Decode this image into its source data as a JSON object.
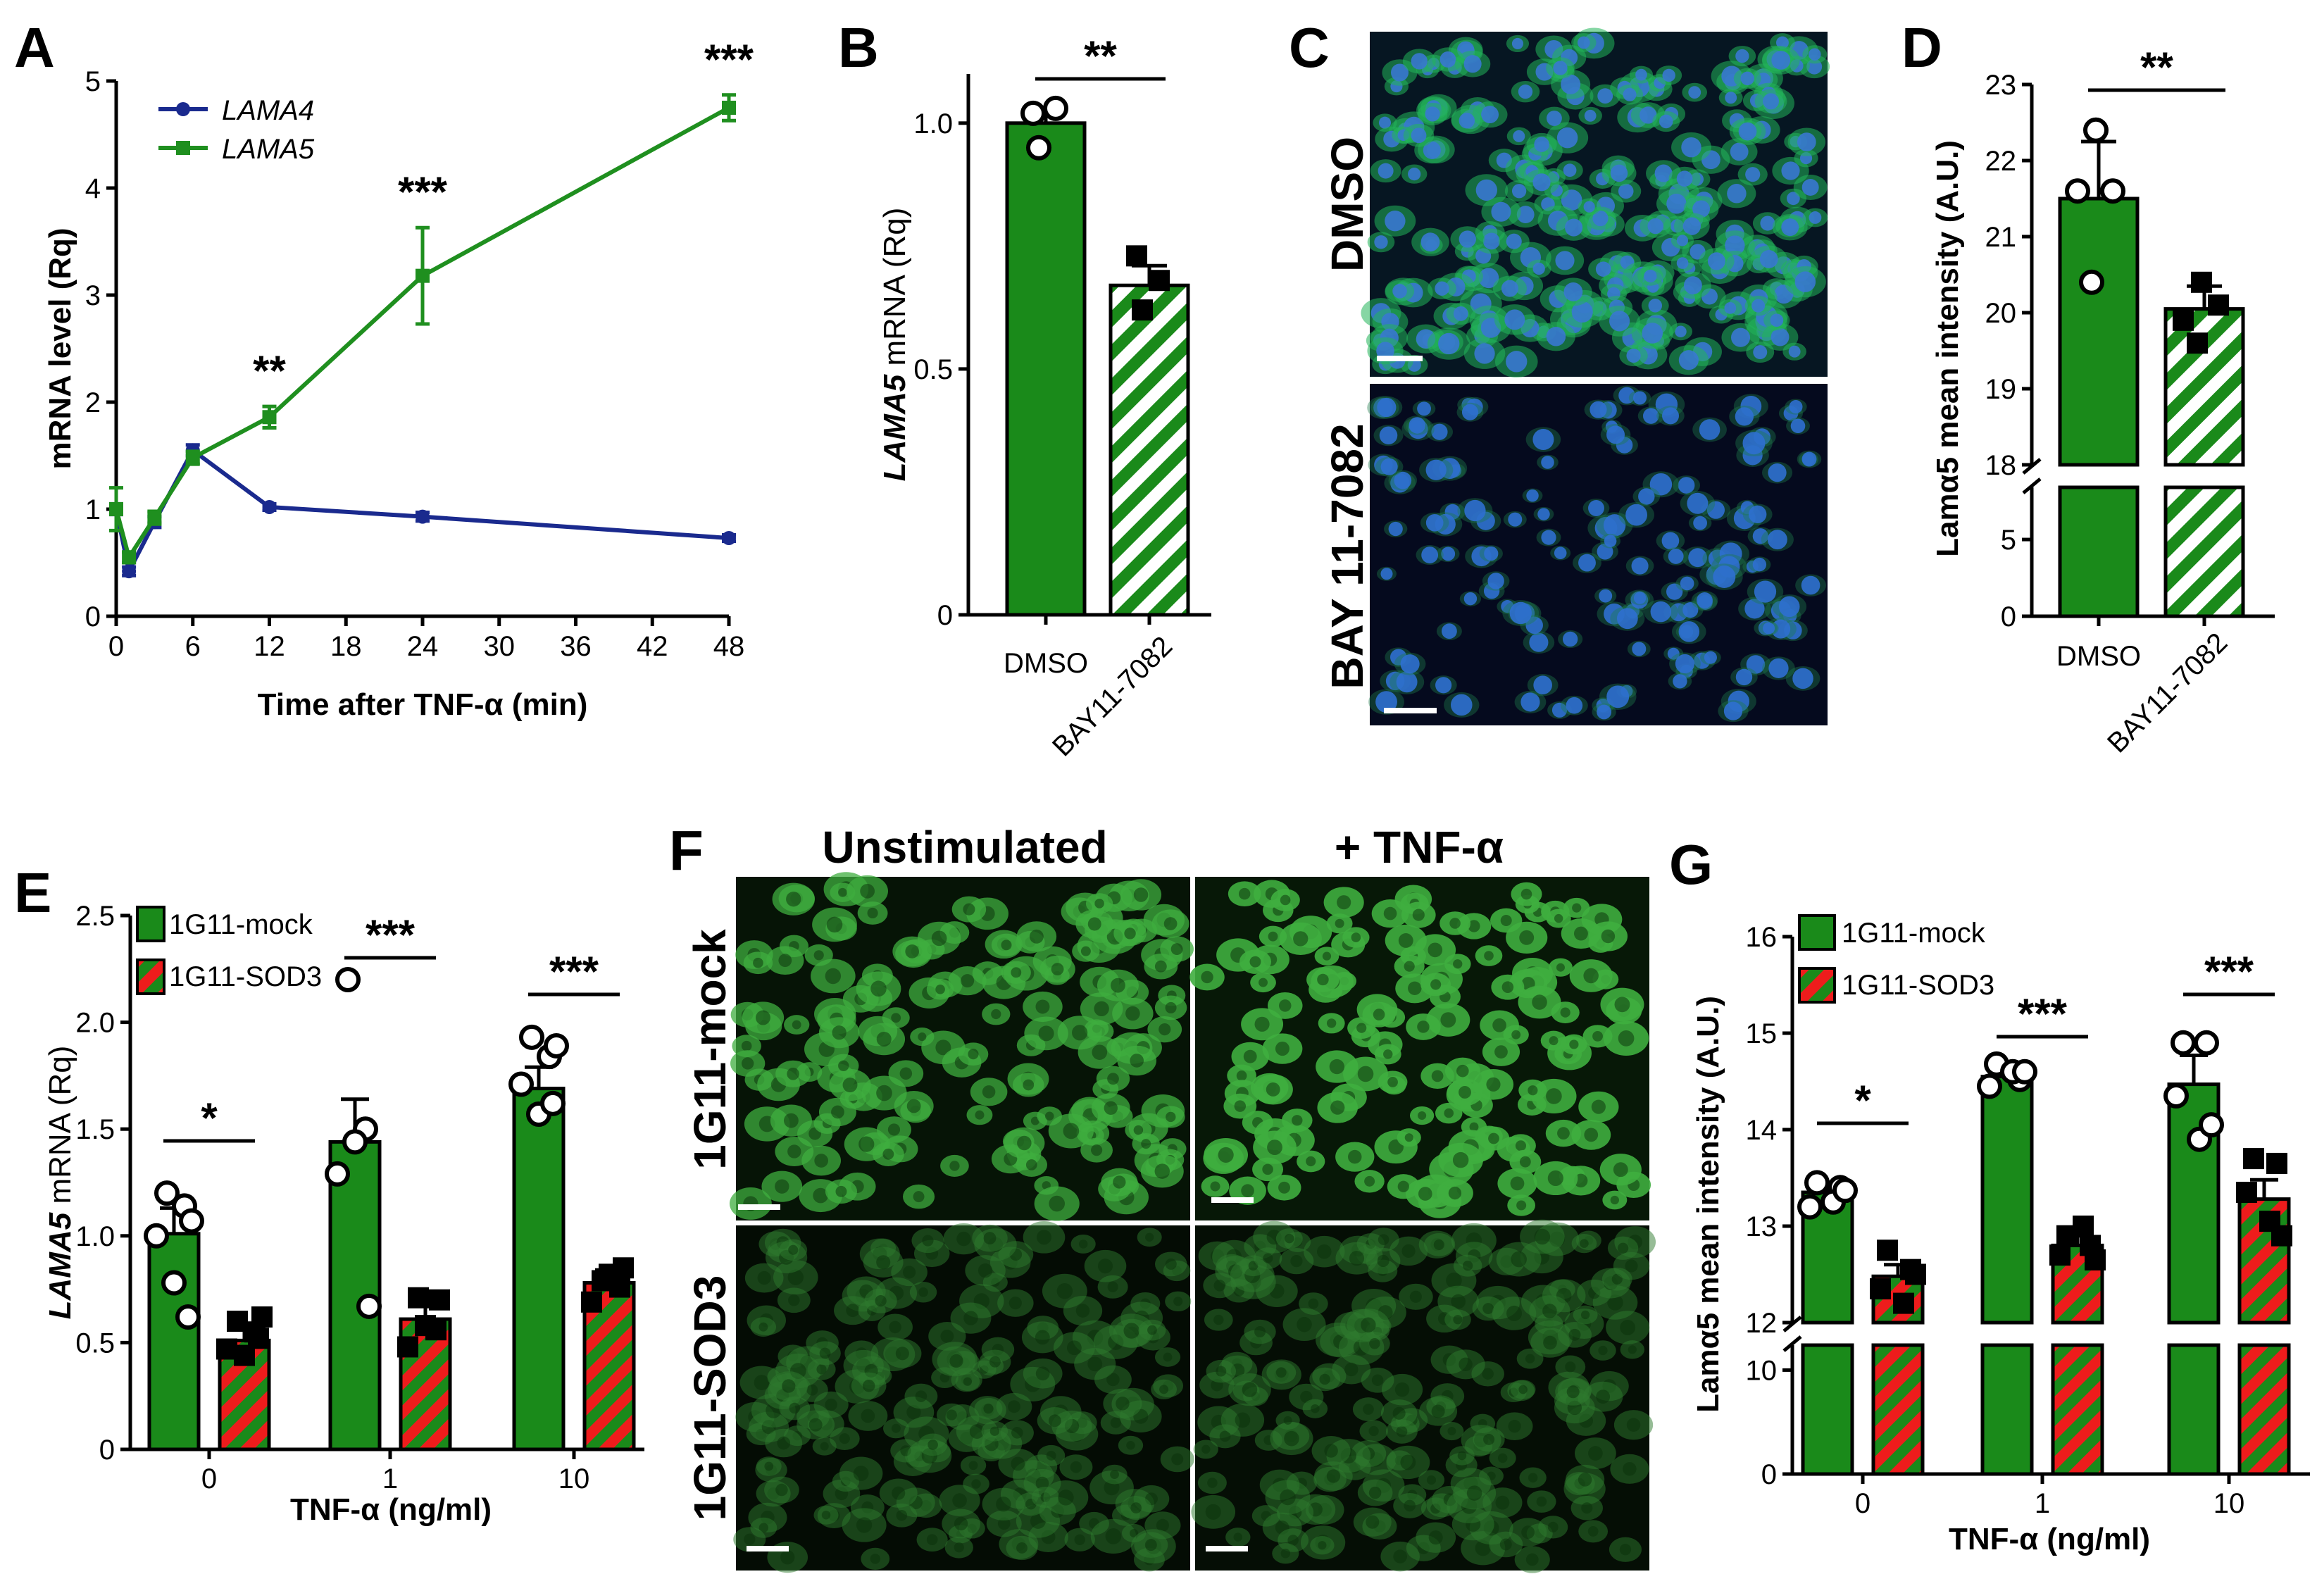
{
  "colors": {
    "green": "#1a8a1a",
    "lama4": "#1a2a8e",
    "lama5": "#1f8f1f",
    "red": "#ee1c1c",
    "white": "#ffffff"
  },
  "panel_labels": {
    "A": "A",
    "B": "B",
    "C": "C",
    "D": "D",
    "E": "E",
    "F": "F",
    "G": "G"
  },
  "chart_data": [
    {
      "id": "A",
      "type": "line",
      "xlabel": "Time after TNF-α (min)",
      "ylabel": "mRNA level (Rq)",
      "xticks": [
        "0",
        "6",
        "12",
        "18",
        "24",
        "30",
        "36",
        "42",
        "48"
      ],
      "yticks": [
        "0",
        "1",
        "2",
        "3",
        "4",
        "5"
      ],
      "xlim": [
        0,
        48
      ],
      "ylim": [
        0,
        5
      ],
      "series": [
        {
          "name": "LAMA4",
          "x": [
            0,
            1,
            3,
            6,
            12,
            24,
            48
          ],
          "values": [
            1.0,
            0.42,
            0.88,
            1.55,
            1.02,
            0.93,
            0.73
          ],
          "err": [
            0.05,
            0.04,
            0.05,
            0.05,
            0.03,
            0.04,
            0.03
          ]
        },
        {
          "name": "LAMA5",
          "x": [
            0,
            1,
            3,
            6,
            12,
            24,
            48
          ],
          "values": [
            1.0,
            0.55,
            0.92,
            1.48,
            1.86,
            3.18,
            4.75
          ],
          "err": [
            0.2,
            0.05,
            0.06,
            0.06,
            0.1,
            0.45,
            0.12
          ]
        }
      ],
      "stars": [
        {
          "x": 12,
          "label": "**"
        },
        {
          "x": 24,
          "label": "***"
        },
        {
          "x": 48,
          "label": "***"
        }
      ]
    },
    {
      "id": "B",
      "type": "bar",
      "ylabel_italic": "LAMA5",
      "ylabel_rest": " mRNA (Rq)",
      "categories": [
        "DMSO",
        "BAY11-7082"
      ],
      "values": [
        1.0,
        0.67
      ],
      "err": [
        0.03,
        0.04
      ],
      "points": [
        [
          1.02,
          0.95,
          1.03
        ],
        [
          0.73,
          0.62,
          0.68
        ]
      ],
      "yticks": [
        "0",
        "0.5",
        "1.0"
      ],
      "ylim": [
        0,
        1.1
      ],
      "star": "**"
    },
    {
      "id": "D",
      "type": "bar",
      "ylabel": "Lamα5 mean intensity (A.U.)",
      "categories": [
        "DMSO",
        "BAY11-7082"
      ],
      "values": [
        21.5,
        20.05
      ],
      "err": [
        0.75,
        0.3
      ],
      "points": [
        [
          22.4,
          21.6,
          21.6,
          20.4
        ],
        [
          20.4,
          19.9,
          20.1,
          19.6
        ]
      ],
      "yticks_upper": [
        "18",
        "19",
        "20",
        "21",
        "22",
        "23"
      ],
      "yticks_lower": [
        "0",
        "5"
      ],
      "star": "**"
    },
    {
      "id": "E",
      "type": "bar",
      "ylabel_italic": "LAMA5",
      "ylabel_rest": " mRNA (Rq)",
      "xlabel": "TNF-α (ng/ml)",
      "categories": [
        "0",
        "1",
        "10"
      ],
      "series": [
        {
          "name": "1G11-mock",
          "values": [
            1.01,
            1.44,
            1.69
          ],
          "err": [
            0.12,
            0.2,
            0.1
          ]
        },
        {
          "name": "1G11-SOD3",
          "values": [
            0.51,
            0.61,
            0.78
          ],
          "err": [
            0.05,
            0.08,
            0.06
          ]
        }
      ],
      "points": [
        [
          [
            1.2,
            1.14,
            1.0,
            0.78,
            0.62,
            1.07
          ],
          [
            0.6,
            0.55,
            0.47,
            0.44,
            0.52,
            0.62
          ]
        ],
        [
          [
            2.2,
            1.5,
            1.29,
            1.44,
            0.67
          ],
          [
            0.71,
            0.56,
            0.48,
            0.58,
            0.7
          ]
        ],
        [
          [
            1.93,
            1.84,
            1.71,
            1.57,
            1.62,
            1.89
          ],
          [
            0.79,
            0.76,
            0.69,
            0.82,
            0.85
          ]
        ]
      ],
      "yticks": [
        "0",
        "0.5",
        "1.0",
        "1.5",
        "2.0",
        "2.5"
      ],
      "ylim": [
        0,
        2.5
      ],
      "stars": [
        "*",
        "***",
        "***"
      ]
    },
    {
      "id": "G",
      "type": "bar",
      "ylabel": "Lamα5 mean intensity (A.U.)",
      "xlabel": "TNF-α (ng/ml)",
      "categories": [
        "0",
        "1",
        "10"
      ],
      "series": [
        {
          "name": "1G11-mock",
          "values": [
            13.35,
            14.55,
            14.47
          ],
          "err": [
            0.08,
            0.06,
            0.3
          ]
        },
        {
          "name": "1G11-SOD3",
          "values": [
            12.48,
            12.8,
            13.28
          ],
          "err": [
            0.12,
            0.1,
            0.2
          ]
        }
      ],
      "points": [
        [
          [
            13.45,
            13.4,
            13.2,
            13.25,
            13.37
          ],
          [
            12.75,
            12.55,
            12.35,
            12.2,
            12.5
          ]
        ],
        [
          [
            14.68,
            14.52,
            14.45,
            14.6,
            14.6
          ],
          [
            12.9,
            12.8,
            12.7,
            13.0,
            12.65
          ]
        ],
        [
          [
            14.9,
            14.9,
            14.35,
            13.9,
            14.05
          ],
          [
            13.7,
            13.65,
            13.35,
            13.05,
            12.9
          ]
        ]
      ],
      "yticks_upper": [
        "12",
        "13",
        "14",
        "15",
        "16"
      ],
      "yticks_lower": [
        "0",
        "10"
      ],
      "stars": [
        "*",
        "***",
        "***"
      ]
    }
  ],
  "images": {
    "C": {
      "row1": "DMSO",
      "row2": "BAY 11-7082"
    },
    "F": {
      "col1": "Unstimulated",
      "col2": "+ TNF-α",
      "row1": "1G11-mock",
      "row2": "1G11-SOD3"
    }
  }
}
